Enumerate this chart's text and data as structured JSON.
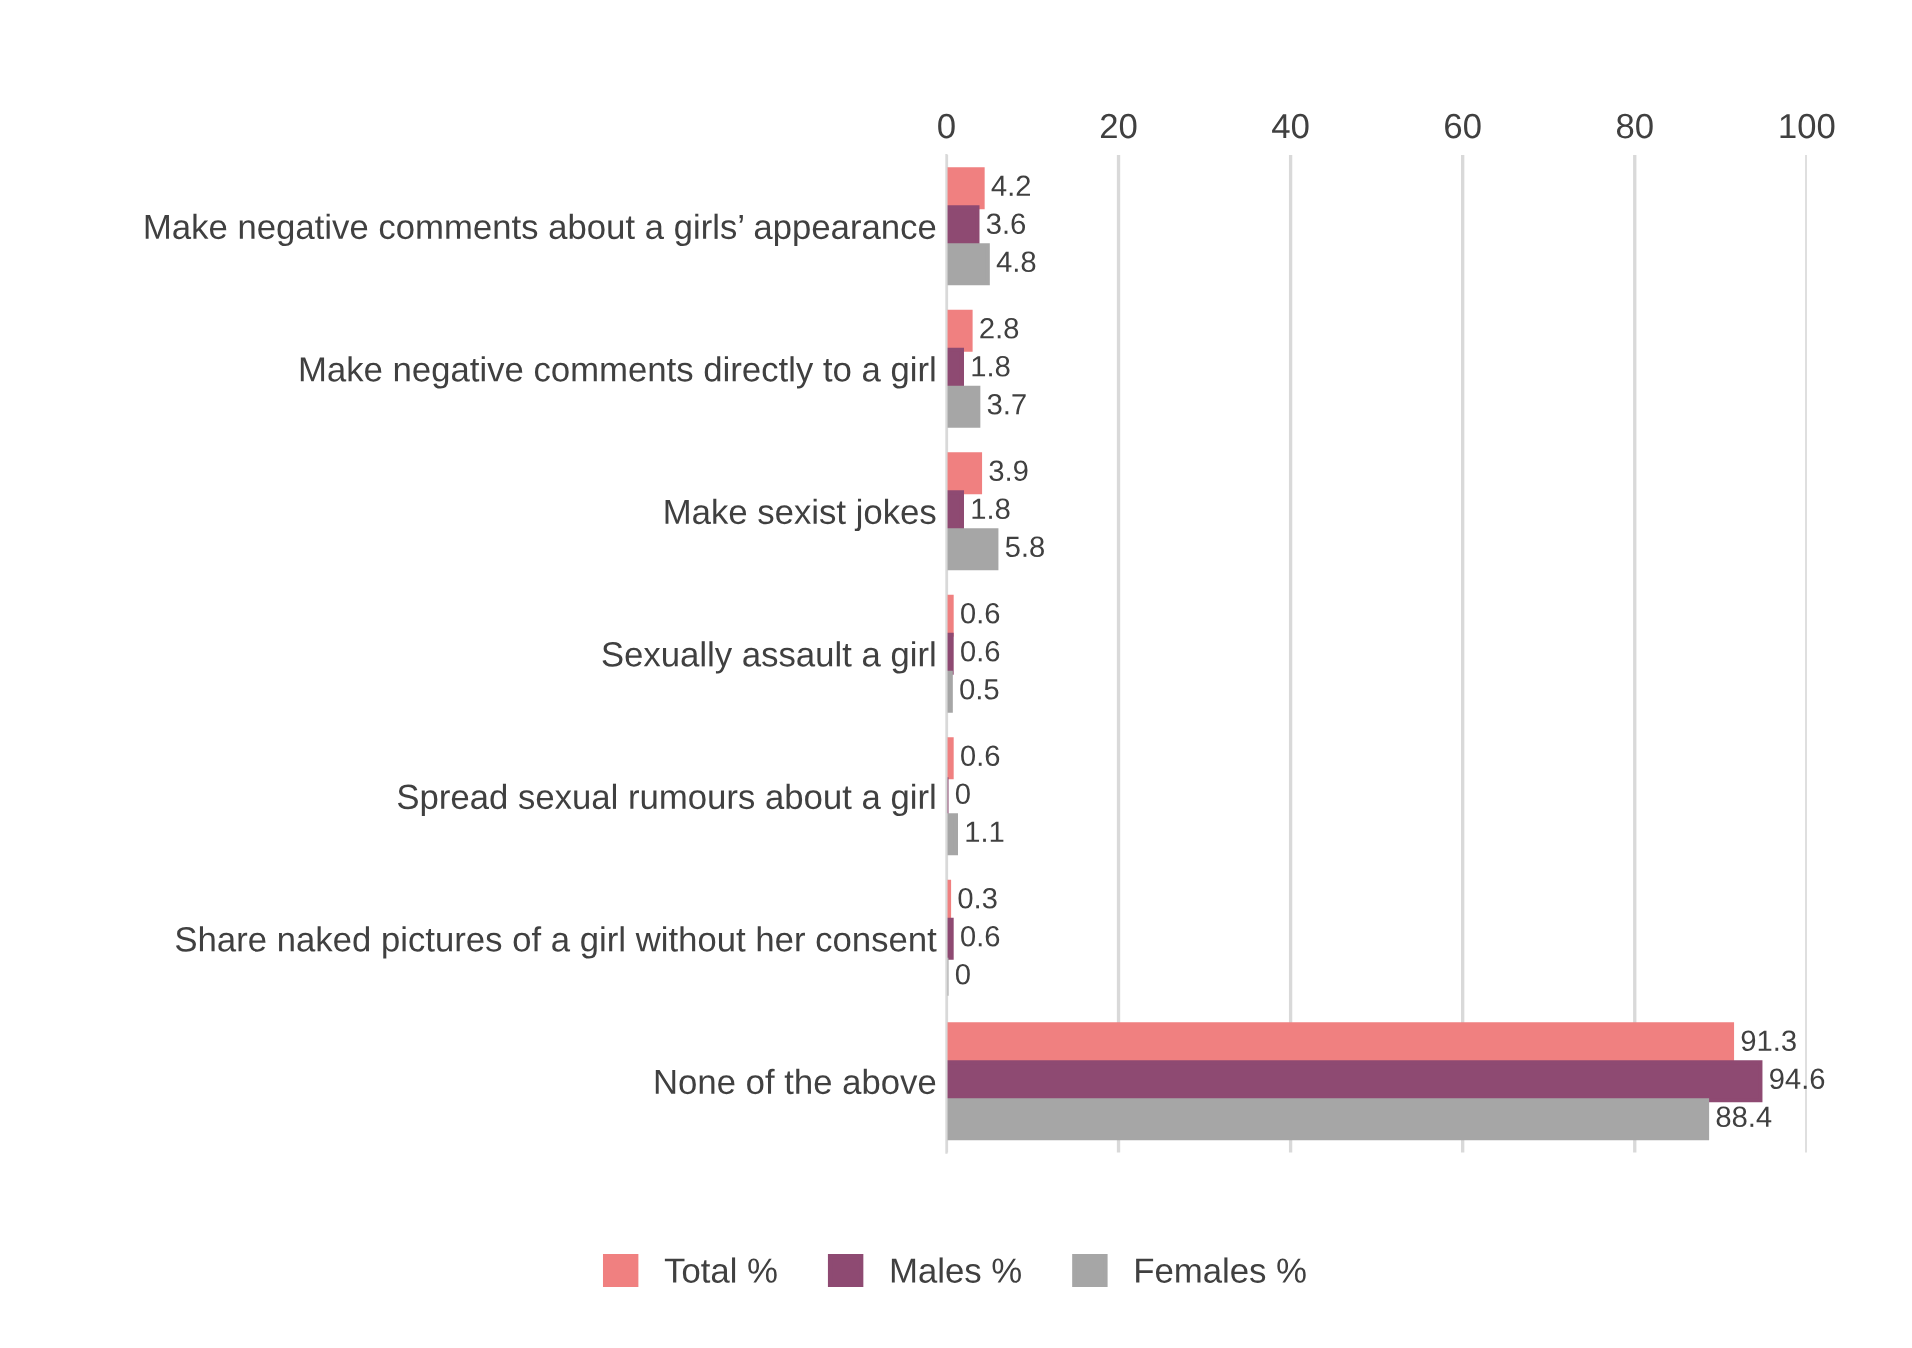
{
  "chart_data": {
    "type": "bar",
    "orientation": "horizontal",
    "categories": [
      "Make negative comments about a girls’ appearance",
      "Make negative comments directly to a girl",
      "Make sexist jokes",
      "Sexually assault a girl",
      "Spread sexual rumours about a girl",
      "Share naked pictures of a girl without her consent",
      "None of the above"
    ],
    "series": [
      {
        "name": "Total %",
        "color": "#f08080",
        "values": [
          4.2,
          2.8,
          3.9,
          0.6,
          0.6,
          0.3,
          91.3
        ]
      },
      {
        "name": "Males %",
        "color": "#8e4a72",
        "values": [
          3.6,
          1.8,
          1.8,
          0.6,
          0,
          0.6,
          94.6
        ]
      },
      {
        "name": "Females %",
        "color": "#a6a6a6",
        "values": [
          4.8,
          3.7,
          5.8,
          0.5,
          1.1,
          0,
          88.4
        ]
      }
    ],
    "xlim": [
      0,
      100
    ],
    "xticks": [
      0,
      20,
      40,
      60,
      80,
      100
    ],
    "grid": "x",
    "legend": "bottom",
    "data_labels": true
  }
}
